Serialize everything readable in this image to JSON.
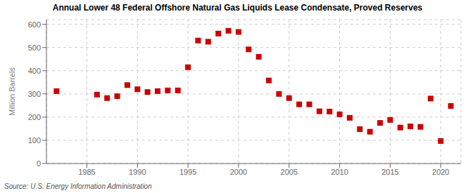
{
  "chart_data": {
    "type": "scatter",
    "title": "Annual Lower 48 Federal Offshore Natural Gas Liquids Lease Condensate, Proved Reserves",
    "ylabel": "Million Barrels",
    "annotations": [
      "Source: U.S. Energy Information Administration"
    ],
    "x": [
      1982,
      1986,
      1987,
      1988,
      1989,
      1990,
      1991,
      1992,
      1993,
      1994,
      1995,
      1996,
      1997,
      1998,
      1999,
      2000,
      2001,
      2002,
      2003,
      2004,
      2005,
      2006,
      2007,
      2008,
      2009,
      2010,
      2011,
      2012,
      2013,
      2014,
      2015,
      2016,
      2017,
      2018,
      2019,
      2020,
      2021
    ],
    "values": [
      312,
      297,
      282,
      290,
      338,
      320,
      308,
      312,
      315,
      315,
      415,
      530,
      525,
      560,
      572,
      567,
      492,
      460,
      358,
      300,
      282,
      255,
      255,
      225,
      224,
      212,
      197,
      148,
      137,
      175,
      188,
      155,
      160,
      158,
      280,
      97,
      248
    ],
    "color": "#CC0000",
    "marker": "square",
    "xlim": [
      1981,
      2022
    ],
    "xticks": [
      1985,
      1990,
      1995,
      2000,
      2005,
      2010,
      2015,
      2020
    ],
    "ylim": [
      0,
      620
    ],
    "yticks": [
      0,
      100,
      200,
      300,
      400,
      500,
      600
    ],
    "grid": true
  }
}
